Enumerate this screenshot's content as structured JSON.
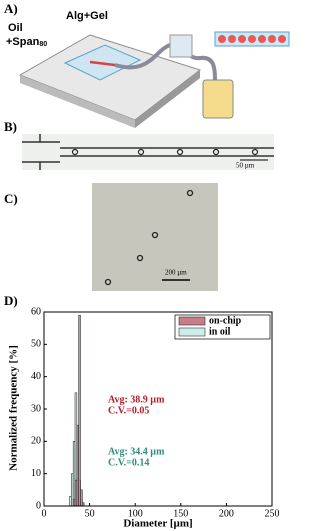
{
  "panels": {
    "a": {
      "label": "A)",
      "oil": "Oil",
      "span": "+Span",
      "span_sub": "80",
      "alg": "Alg+Gel"
    },
    "b": {
      "label": "B)",
      "scale": "50 µm"
    },
    "c": {
      "label": "C)",
      "scale": "200 µm"
    },
    "d": {
      "label": "D)"
    }
  },
  "chart_data": {
    "type": "histogram",
    "x_label": "Diameter [µm]",
    "y_label": "Normalized frequency [%]",
    "bins": [
      28,
      30,
      32,
      34,
      36,
      38,
      40,
      42,
      44
    ],
    "series": [
      {
        "name": "in oil",
        "color": "#cdeee8",
        "values": [
          3,
          10,
          20,
          35,
          22,
          8,
          2,
          0
        ]
      },
      {
        "name": "on-chip",
        "color": "#c97b88",
        "values": [
          0,
          0,
          2,
          8,
          25,
          59,
          5,
          1
        ]
      }
    ],
    "xlim": [
      0,
      250
    ],
    "xticks": [
      0,
      50,
      100,
      150,
      200,
      250
    ],
    "ylim": [
      0,
      60
    ],
    "yticks": [
      0,
      10,
      20,
      30,
      40,
      50,
      60
    ],
    "legend": "top-right",
    "annotations": [
      {
        "text": "Avg: 38.9 µm",
        "color": "#b0202a"
      },
      {
        "text": "C.V.=0.05",
        "color": "#b0202a"
      },
      {
        "text": "Avg: 34.4 µm",
        "color": "#2f8c7a"
      },
      {
        "text": "C.V.=0.14",
        "color": "#2f8c7a"
      }
    ]
  }
}
